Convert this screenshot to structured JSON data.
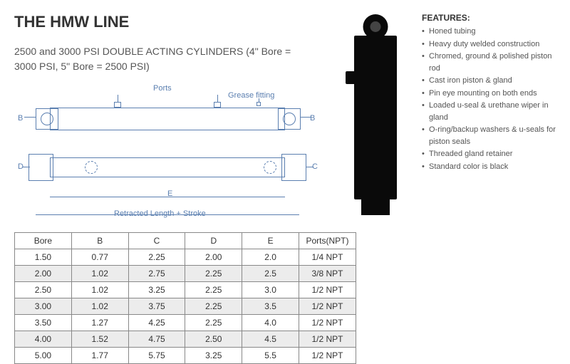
{
  "header": {
    "title": "THE HMW LINE",
    "subtitle": "2500 and 3000 PSI DOUBLE ACTING CYLINDERS (4\" Bore = 3000 PSI, 5\" Bore = 2500 PSI)"
  },
  "diagram": {
    "labels": {
      "ports": "Ports",
      "grease_fitting": "Grease fitting",
      "b_left": "B",
      "b_right": "B",
      "d_left": "D",
      "c_right": "C",
      "e_dim": "E",
      "retracted": "Retracted Length + Stroke"
    },
    "line_color": "#5b7fb0"
  },
  "photo": {
    "body_color": "#0a0a0a"
  },
  "features": {
    "title": "FEATURES:",
    "items": [
      "Honed tubing",
      "Heavy duty welded construction",
      "Chromed, ground & polished piston rod",
      "Cast iron piston & gland",
      "Pin eye mounting on both ends",
      "Loaded u-seal & urethane wiper in gland",
      "O-ring/backup washers & u-seals for piston seals",
      "Threaded gland retainer",
      "Standard color is black"
    ]
  },
  "table": {
    "columns": [
      "Bore",
      "B",
      "C",
      "D",
      "E",
      "Ports(NPT)"
    ],
    "rows": [
      [
        "1.50",
        "0.77",
        "2.25",
        "2.00",
        "2.0",
        "1/4 NPT"
      ],
      [
        "2.00",
        "1.02",
        "2.75",
        "2.25",
        "2.5",
        "3/8 NPT"
      ],
      [
        "2.50",
        "1.02",
        "3.25",
        "2.25",
        "3.0",
        "1/2 NPT"
      ],
      [
        "3.00",
        "1.02",
        "3.75",
        "2.25",
        "3.5",
        "1/2 NPT"
      ],
      [
        "3.50",
        "1.27",
        "4.25",
        "2.25",
        "4.0",
        "1/2 NPT"
      ],
      [
        "4.00",
        "1.52",
        "4.75",
        "2.50",
        "4.5",
        "1/2 NPT"
      ],
      [
        "5.00",
        "1.77",
        "5.75",
        "3.25",
        "5.5",
        "1/2 NPT"
      ]
    ],
    "widths": [
      "80px",
      "80px",
      "80px",
      "80px",
      "80px",
      "80px"
    ],
    "even_row_bg": "#ececec",
    "odd_row_bg": "#ffffff",
    "border_color": "#888888"
  }
}
